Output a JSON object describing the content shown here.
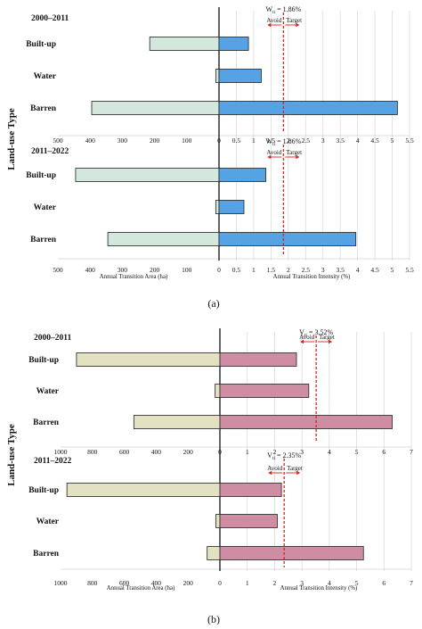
{
  "ylabel": "Land-use Type",
  "colors": {
    "area_a": "#d3e7dd",
    "intensity_a": "#55a3e4",
    "area_b": "#e2e2c2",
    "intensity_b": "#cf8da3",
    "refline": "#d9231c",
    "grid": "#dcdcdc"
  },
  "figures": [
    {
      "label": "(a)",
      "ref_symbol": "W",
      "ref_sub": "ti",
      "avoid_label": "Avoid",
      "target_label": "Target",
      "area_axis_title": "Annual Transition Area (ha)",
      "intensity_axis_title": "Annual Transition Intensity (%)",
      "area_ticks": [
        500,
        400,
        300,
        200,
        100,
        0
      ],
      "intensity_ticks": [
        "0",
        "0.5",
        "1",
        "1.5",
        "2",
        "2.5",
        "3",
        "3.5",
        "4",
        "4.5",
        "5",
        "5.5"
      ]
    },
    {
      "label": "(b)",
      "ref_symbol": "V",
      "ref_sub": "ti",
      "avoid_label": "Avoid",
      "target_label": "Target",
      "area_axis_title": "Annual Transition Area (ha)",
      "intensity_axis_title": "Annual Transition Intensity (%)",
      "area_ticks": [
        1000,
        800,
        600,
        400,
        200,
        0
      ],
      "intensity_ticks": [
        "0",
        "1",
        "2",
        "3",
        "4",
        "5",
        "6",
        "7"
      ]
    }
  ],
  "chart_data": [
    {
      "type": "bar",
      "title": "2000–2011",
      "categories": [
        "Built-up",
        "Water",
        "Barren"
      ],
      "series": [
        {
          "name": "Annual Transition Area (ha)",
          "values": [
            215,
            10,
            395
          ]
        },
        {
          "name": "Annual Transition Intensity (%)",
          "values": [
            0.85,
            1.22,
            5.15
          ]
        }
      ],
      "reference_line": {
        "label": " = 1.86%",
        "value": 1.86
      },
      "xlim_area": [
        500,
        0
      ],
      "xlim_intensity": [
        0,
        5.5
      ]
    },
    {
      "type": "bar",
      "title": "2011–2022",
      "categories": [
        "Built-up",
        "Water",
        "Barren"
      ],
      "series": [
        {
          "name": "Annual Transition Area (ha)",
          "values": [
            445,
            10,
            345
          ]
        },
        {
          "name": "Annual Transition Intensity (%)",
          "values": [
            1.35,
            0.72,
            3.95
          ]
        }
      ],
      "reference_line": {
        "label": " = 1.86%",
        "value": 1.86
      },
      "xlim_area": [
        500,
        0
      ],
      "xlim_intensity": [
        0,
        5.5
      ]
    },
    {
      "type": "bar",
      "title": "2000–2011",
      "categories": [
        "Built-up",
        "Water",
        "Barren"
      ],
      "series": [
        {
          "name": "Annual Transition Area (ha)",
          "values": [
            900,
            30,
            540
          ]
        },
        {
          "name": "Annual Transition Intensity (%)",
          "values": [
            2.8,
            3.25,
            6.3
          ]
        }
      ],
      "reference_line": {
        "label": " = 3.52%",
        "value": 3.52
      },
      "xlim_area": [
        1000,
        0
      ],
      "xlim_intensity": [
        0,
        7
      ]
    },
    {
      "type": "bar",
      "title": "2011–2022",
      "categories": [
        "Built-up",
        "Water",
        "Barren"
      ],
      "series": [
        {
          "name": "Annual Transition Area (ha)",
          "values": [
            960,
            25,
            80
          ]
        },
        {
          "name": "Annual Transition Intensity (%)",
          "values": [
            2.25,
            2.1,
            5.25
          ]
        }
      ],
      "reference_line": {
        "label": " = 2.35%",
        "value": 2.35
      },
      "xlim_area": [
        1000,
        0
      ],
      "xlim_intensity": [
        0,
        7
      ]
    }
  ]
}
